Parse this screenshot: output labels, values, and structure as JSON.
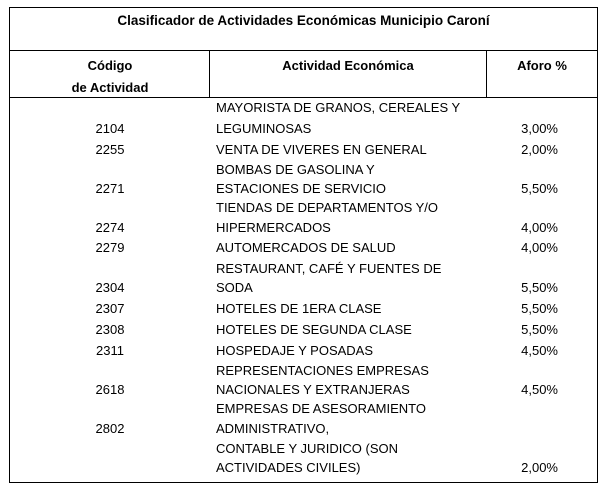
{
  "title": "Clasificador de Actividades Económicas Municipio Caroní",
  "headers": {
    "code_line1": "Código",
    "code_line2": "de Actividad",
    "activity": "Actividad Económica",
    "aforo": "Aforo %"
  },
  "rows": [
    {
      "code": "2104",
      "activity": [
        "MAYORISTA DE  GRANOS, CEREALES Y",
        "LEGUMINOSAS"
      ],
      "aforo": "3,00%"
    },
    {
      "code": "2255",
      "activity": [
        "VENTA  DE  VIVERES  EN  GENERAL"
      ],
      "aforo": "2,00%"
    },
    {
      "code": "2271",
      "activity": [
        "BOMBAS  DE  GASOLINA Y",
        "ESTACIONES  DE SERVICIO"
      ],
      "aforo": "5,50%"
    },
    {
      "code": "2274",
      "activity": [
        "TIENDAS  DE  DEPARTAMENTOS Y/O",
        "HIPERMERCADOS"
      ],
      "aforo": "4,00%"
    },
    {
      "code": "2279",
      "activity": [
        "AUTOMERCADOS  DE  SALUD"
      ],
      "aforo": "4,00%"
    },
    {
      "code": "2304",
      "activity": [
        "RESTAURANT, CAFÉ Y FUENTES DE",
        "SODA"
      ],
      "aforo": "5,50%"
    },
    {
      "code": "2307",
      "activity": [
        "HOTELES DE 1ERA CLASE"
      ],
      "aforo": "5,50%"
    },
    {
      "code": "2308",
      "activity": [
        "HOTELES DE SEGUNDA CLASE"
      ],
      "aforo": "5,50%"
    },
    {
      "code": "2311",
      "activity": [
        "HOSPEDAJE Y POSADAS"
      ],
      "aforo": "4,50%"
    },
    {
      "code": "2618",
      "activity": [
        "REPRESENTACIONES EMPRESAS",
        "NACIONALES Y EXTRANJERAS"
      ],
      "aforo": "4,50%"
    },
    {
      "code": "2802",
      "activity": [
        "EMPRESAS DE ASESORAMIENTO",
        "ADMINISTRATIVO,",
        "CONTABLE  Y  JURIDICO (SON",
        "ACTIVIDADES CIVILES)"
      ],
      "aforo": "2,00%"
    }
  ]
}
